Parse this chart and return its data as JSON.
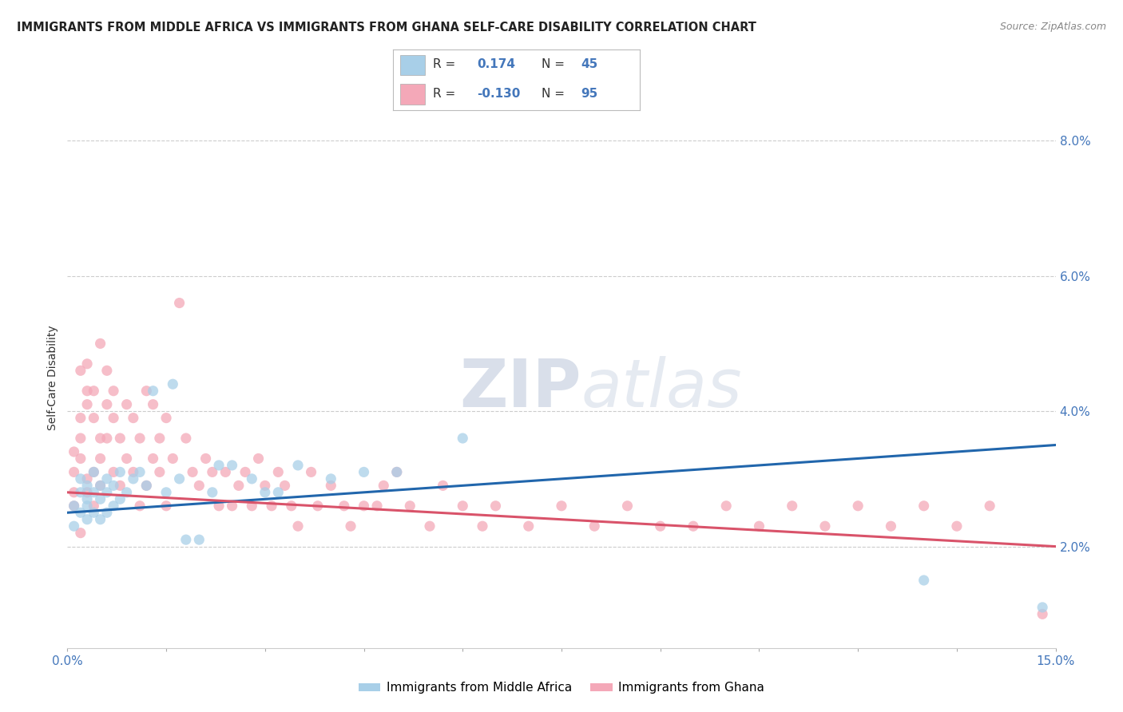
{
  "title": "IMMIGRANTS FROM MIDDLE AFRICA VS IMMIGRANTS FROM GHANA SELF-CARE DISABILITY CORRELATION CHART",
  "source": "Source: ZipAtlas.com",
  "ylabel": "Self-Care Disability",
  "x_min": 0.0,
  "x_max": 0.15,
  "y_min": 0.005,
  "y_max": 0.085,
  "x_ticks": [
    0.0,
    0.015,
    0.03,
    0.045,
    0.06,
    0.075,
    0.09,
    0.105,
    0.12,
    0.135,
    0.15
  ],
  "x_tick_labels_show": [
    "0.0%",
    "",
    "",
    "",
    "",
    "",
    "",
    "",
    "",
    "",
    "15.0%"
  ],
  "y_ticks": [
    0.02,
    0.04,
    0.06,
    0.08
  ],
  "y_tick_labels": [
    "2.0%",
    "4.0%",
    "6.0%",
    "8.0%"
  ],
  "legend_labels": [
    "Immigrants from Middle Africa",
    "Immigrants from Ghana"
  ],
  "r_blue": 0.174,
  "n_blue": 45,
  "r_pink": -0.13,
  "n_pink": 95,
  "blue_scatter_color": "#a8cfe8",
  "pink_scatter_color": "#f4a8b8",
  "blue_line_color": "#2166ac",
  "pink_line_color": "#d9536a",
  "title_color": "#222222",
  "tick_color": "#4477bb",
  "grid_color": "#cccccc",
  "background_color": "#ffffff",
  "blue_trend_x0": 0.0,
  "blue_trend_y0": 0.025,
  "blue_trend_x1": 0.15,
  "blue_trend_y1": 0.035,
  "pink_trend_x0": 0.0,
  "pink_trend_y0": 0.028,
  "pink_trend_x1": 0.15,
  "pink_trend_y1": 0.02,
  "blue_scatter_x": [
    0.001,
    0.001,
    0.002,
    0.002,
    0.002,
    0.003,
    0.003,
    0.003,
    0.003,
    0.004,
    0.004,
    0.004,
    0.005,
    0.005,
    0.005,
    0.006,
    0.006,
    0.006,
    0.007,
    0.007,
    0.008,
    0.008,
    0.009,
    0.01,
    0.011,
    0.012,
    0.013,
    0.015,
    0.016,
    0.017,
    0.018,
    0.02,
    0.022,
    0.023,
    0.025,
    0.028,
    0.03,
    0.032,
    0.035,
    0.04,
    0.045,
    0.05,
    0.06,
    0.13,
    0.148
  ],
  "blue_scatter_y": [
    0.026,
    0.023,
    0.03,
    0.025,
    0.028,
    0.027,
    0.024,
    0.029,
    0.026,
    0.028,
    0.025,
    0.031,
    0.024,
    0.027,
    0.029,
    0.025,
    0.028,
    0.03,
    0.026,
    0.029,
    0.027,
    0.031,
    0.028,
    0.03,
    0.031,
    0.029,
    0.043,
    0.028,
    0.044,
    0.03,
    0.021,
    0.021,
    0.028,
    0.032,
    0.032,
    0.03,
    0.028,
    0.028,
    0.032,
    0.03,
    0.031,
    0.031,
    0.036,
    0.015,
    0.011
  ],
  "pink_scatter_x": [
    0.001,
    0.001,
    0.001,
    0.001,
    0.002,
    0.002,
    0.002,
    0.002,
    0.002,
    0.003,
    0.003,
    0.003,
    0.003,
    0.003,
    0.004,
    0.004,
    0.004,
    0.004,
    0.005,
    0.005,
    0.005,
    0.005,
    0.006,
    0.006,
    0.006,
    0.007,
    0.007,
    0.007,
    0.008,
    0.008,
    0.009,
    0.009,
    0.01,
    0.01,
    0.011,
    0.011,
    0.012,
    0.012,
    0.013,
    0.013,
    0.014,
    0.014,
    0.015,
    0.015,
    0.016,
    0.017,
    0.018,
    0.019,
    0.02,
    0.021,
    0.022,
    0.023,
    0.024,
    0.025,
    0.026,
    0.027,
    0.028,
    0.029,
    0.03,
    0.031,
    0.032,
    0.033,
    0.034,
    0.035,
    0.037,
    0.038,
    0.04,
    0.042,
    0.043,
    0.045,
    0.047,
    0.048,
    0.05,
    0.052,
    0.055,
    0.057,
    0.06,
    0.063,
    0.065,
    0.07,
    0.075,
    0.08,
    0.085,
    0.09,
    0.095,
    0.1,
    0.105,
    0.11,
    0.115,
    0.12,
    0.125,
    0.13,
    0.135,
    0.14,
    0.148
  ],
  "pink_scatter_y": [
    0.026,
    0.031,
    0.028,
    0.034,
    0.033,
    0.036,
    0.039,
    0.022,
    0.046,
    0.041,
    0.043,
    0.03,
    0.028,
    0.047,
    0.039,
    0.031,
    0.026,
    0.043,
    0.036,
    0.029,
    0.033,
    0.05,
    0.041,
    0.036,
    0.046,
    0.031,
    0.043,
    0.039,
    0.029,
    0.036,
    0.033,
    0.041,
    0.039,
    0.031,
    0.026,
    0.036,
    0.043,
    0.029,
    0.033,
    0.041,
    0.036,
    0.031,
    0.039,
    0.026,
    0.033,
    0.056,
    0.036,
    0.031,
    0.029,
    0.033,
    0.031,
    0.026,
    0.031,
    0.026,
    0.029,
    0.031,
    0.026,
    0.033,
    0.029,
    0.026,
    0.031,
    0.029,
    0.026,
    0.023,
    0.031,
    0.026,
    0.029,
    0.026,
    0.023,
    0.026,
    0.026,
    0.029,
    0.031,
    0.026,
    0.023,
    0.029,
    0.026,
    0.023,
    0.026,
    0.023,
    0.026,
    0.023,
    0.026,
    0.023,
    0.023,
    0.026,
    0.023,
    0.026,
    0.023,
    0.026,
    0.023,
    0.026,
    0.023,
    0.026,
    0.01
  ]
}
